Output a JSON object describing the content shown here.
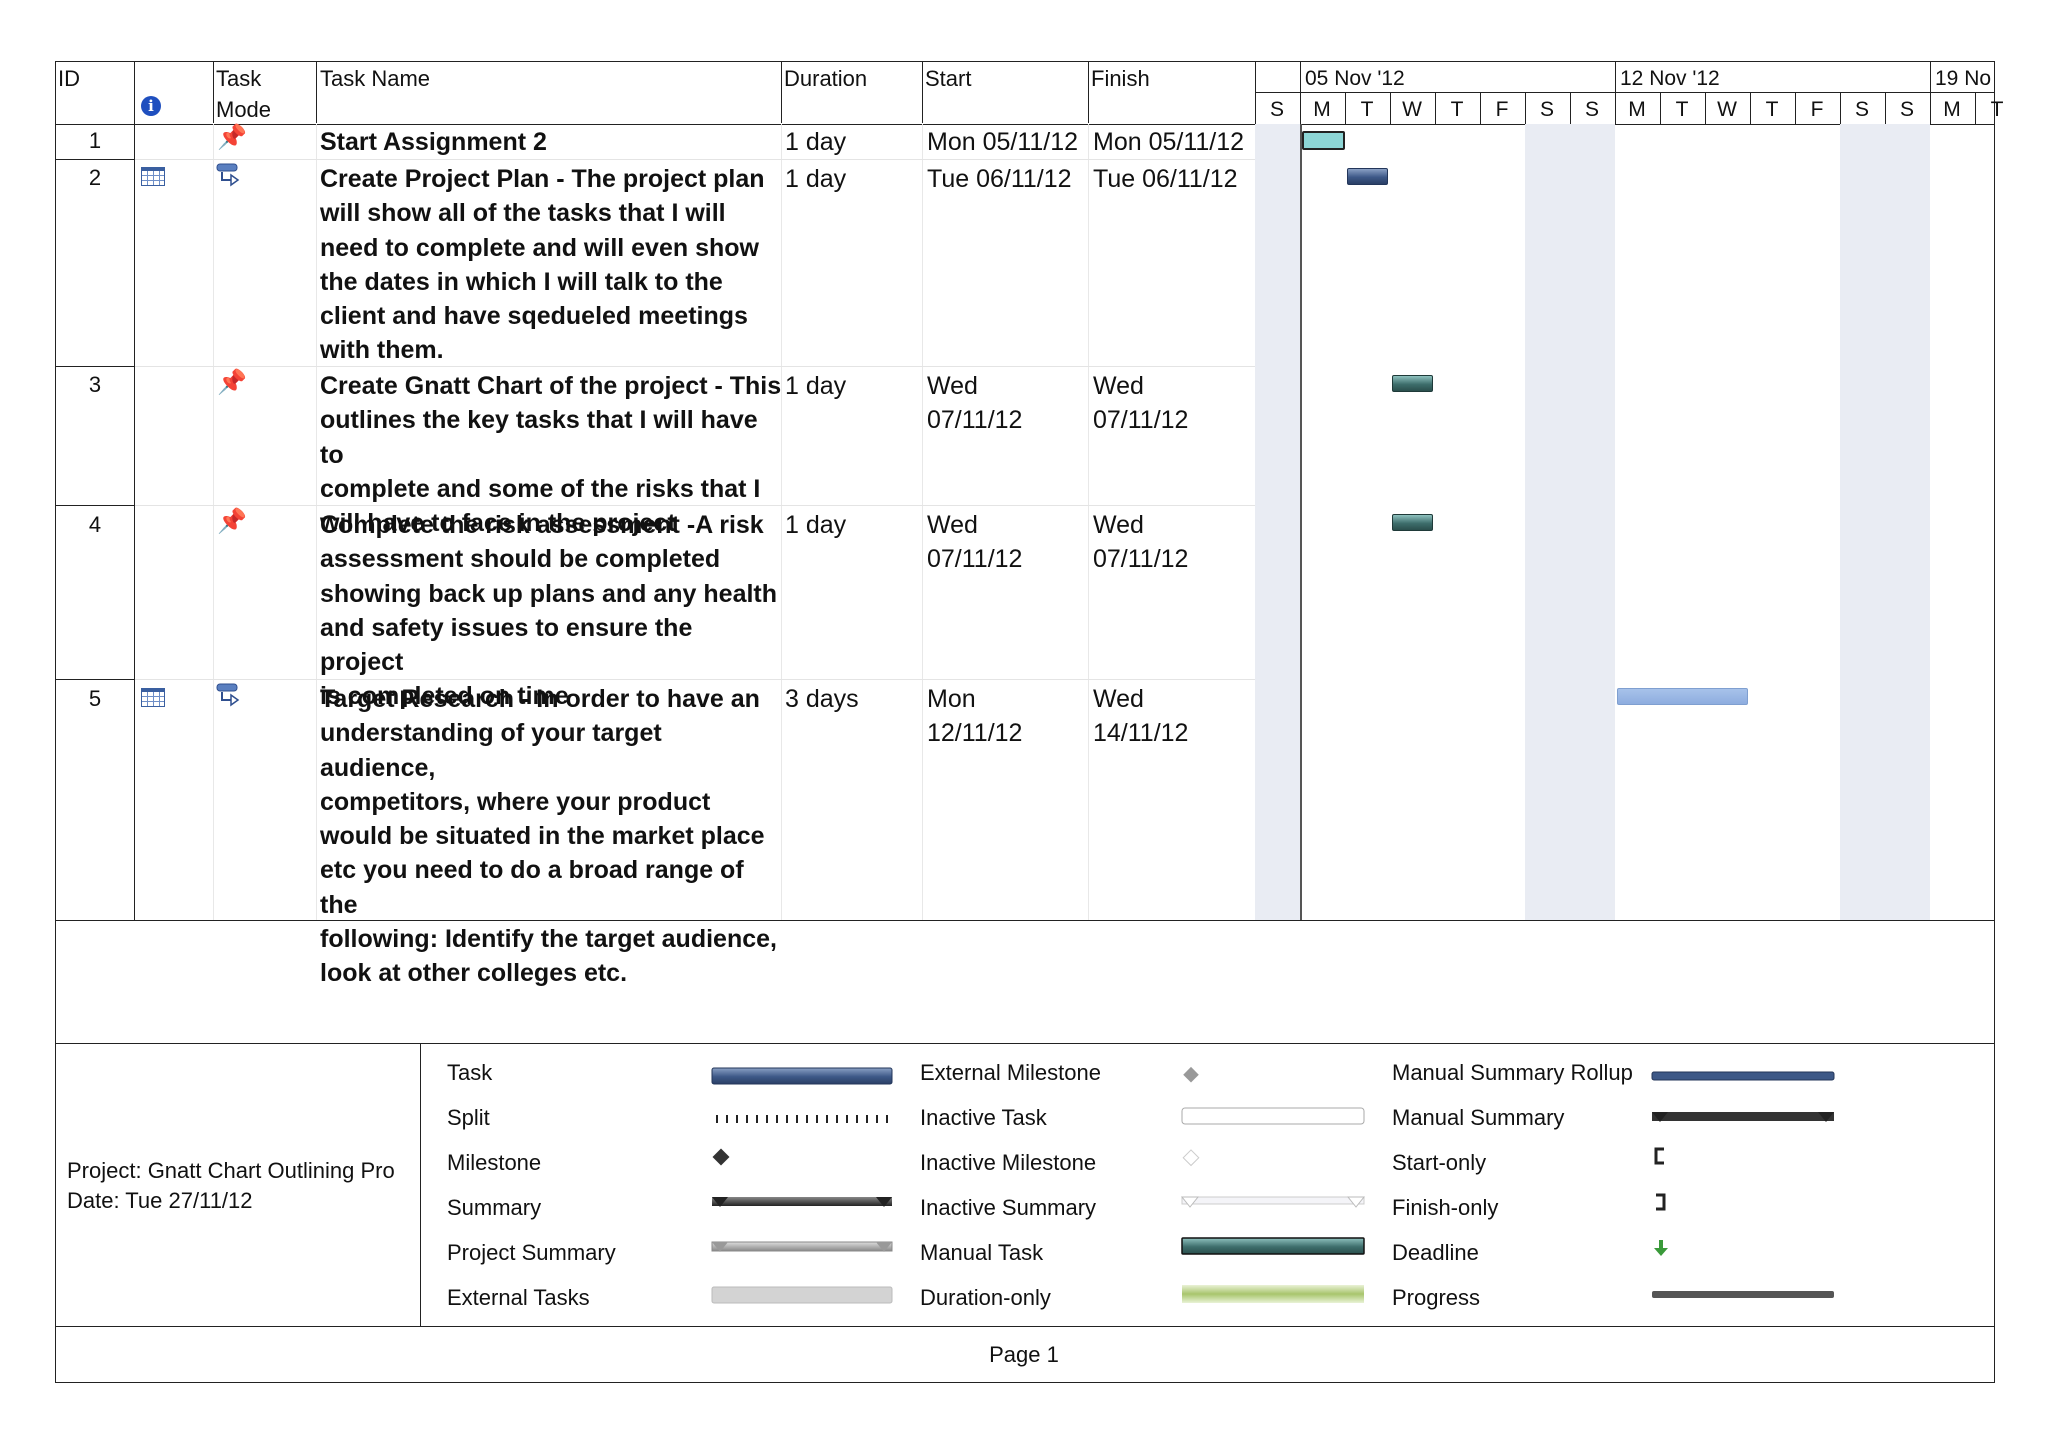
{
  "headers": {
    "id": "ID",
    "task_mode": [
      "Task",
      "Mode"
    ],
    "task_name": "Task Name",
    "duration": "Duration",
    "start": "Start",
    "finish": "Finish"
  },
  "timeline": {
    "weeks": [
      "05 Nov '12",
      "12 Nov '12",
      "19 No"
    ],
    "days": [
      "S",
      "M",
      "T",
      "W",
      "T",
      "F",
      "S",
      "S",
      "M",
      "T",
      "W",
      "T",
      "F",
      "S",
      "S",
      "M",
      "T"
    ]
  },
  "tasks": [
    {
      "id": "1",
      "indicator": "",
      "mode": "manual",
      "name": [
        "Start Assignment 2"
      ],
      "duration": "1 day",
      "start": [
        "Mon 05/11/12"
      ],
      "finish": [
        "Mon 05/11/12"
      ],
      "bar_start_day": 1,
      "bar_days": 1,
      "bar_style": "start"
    },
    {
      "id": "2",
      "indicator": "calendar",
      "mode": "auto",
      "name": [
        "Create Project Plan - The project plan",
        "will show all of the tasks that I will",
        "need to complete and will even show",
        "the dates in which I will talk to the",
        "client and have sqedueled meetings",
        "with them."
      ],
      "duration": "1 day",
      "start": [
        "Tue 06/11/12"
      ],
      "finish": [
        "Tue 06/11/12"
      ],
      "bar_start_day": 2,
      "bar_days": 1,
      "bar_style": "task"
    },
    {
      "id": "3",
      "indicator": "",
      "mode": "manual",
      "name": [
        "Create Gnatt Chart of the project - This",
        "outlines the key tasks that I will have to",
        "complete and some of the risks that I",
        "will have to face in the project"
      ],
      "duration": "1 day",
      "start": [
        "Wed",
        "07/11/12"
      ],
      "finish": [
        "Wed",
        "07/11/12"
      ],
      "bar_start_day": 3,
      "bar_days": 1,
      "bar_style": "manual"
    },
    {
      "id": "4",
      "indicator": "",
      "mode": "manual",
      "name": [
        "Complete the risk assessment -A risk",
        "assessment should be completed",
        "showing back up plans and any health",
        "and safety issues to ensure the project",
        "is completed on time"
      ],
      "duration": "1 day",
      "start": [
        "Wed",
        "07/11/12"
      ],
      "finish": [
        "Wed",
        "07/11/12"
      ],
      "bar_start_day": 3,
      "bar_days": 1,
      "bar_style": "manual"
    },
    {
      "id": "5",
      "indicator": "calendar",
      "mode": "auto",
      "name": [
        "Target Research - In order to have an",
        "understanding of your target audience,",
        "competitors, where your product",
        "would be situated in the market place",
        "etc you need to do a broad range of the",
        "following: Identify the target audience,",
        "look at other colleges etc."
      ],
      "duration": "3 days",
      "start": [
        "Mon",
        "12/11/12"
      ],
      "finish": [
        "Wed",
        "14/11/12"
      ],
      "bar_start_day": 8,
      "bar_days": 3,
      "bar_style": "light"
    }
  ],
  "footer": {
    "project": "Project: Gnatt Chart Outlining Pro",
    "date": "Date: Tue 27/11/12",
    "page": "Page 1"
  },
  "legend": {
    "col1": [
      "Task",
      "Split",
      "Milestone",
      "Summary",
      "Project Summary",
      "External Tasks"
    ],
    "col2": [
      "External Milestone",
      "Inactive Task",
      "Inactive Milestone",
      "Inactive Summary",
      "Manual Task",
      "Duration-only"
    ],
    "col3": [
      "Manual Summary Rollup",
      "Manual Summary",
      "Start-only",
      "Finish-only",
      "Deadline",
      "Progress"
    ]
  },
  "colors": {
    "task_bar": "#3d5887",
    "manual_task_bar": "#3e6e6c",
    "light_task_bar": "#8eaddf",
    "start_bar": "#8dd6d6",
    "weekend_shade": "#e9ecf3",
    "info_icon": "#1f4fbf"
  },
  "chart_data": {
    "type": "gantt",
    "tasks": [
      {
        "name": "Start Assignment 2",
        "start": "05/11/12",
        "finish": "05/11/12",
        "duration_days": 1
      },
      {
        "name": "Create Project Plan",
        "start": "06/11/12",
        "finish": "06/11/12",
        "duration_days": 1
      },
      {
        "name": "Create Gnatt Chart of the project",
        "start": "07/11/12",
        "finish": "07/11/12",
        "duration_days": 1
      },
      {
        "name": "Complete the risk assessment",
        "start": "07/11/12",
        "finish": "07/11/12",
        "duration_days": 1
      },
      {
        "name": "Target Research",
        "start": "12/11/12",
        "finish": "14/11/12",
        "duration_days": 3
      }
    ]
  }
}
